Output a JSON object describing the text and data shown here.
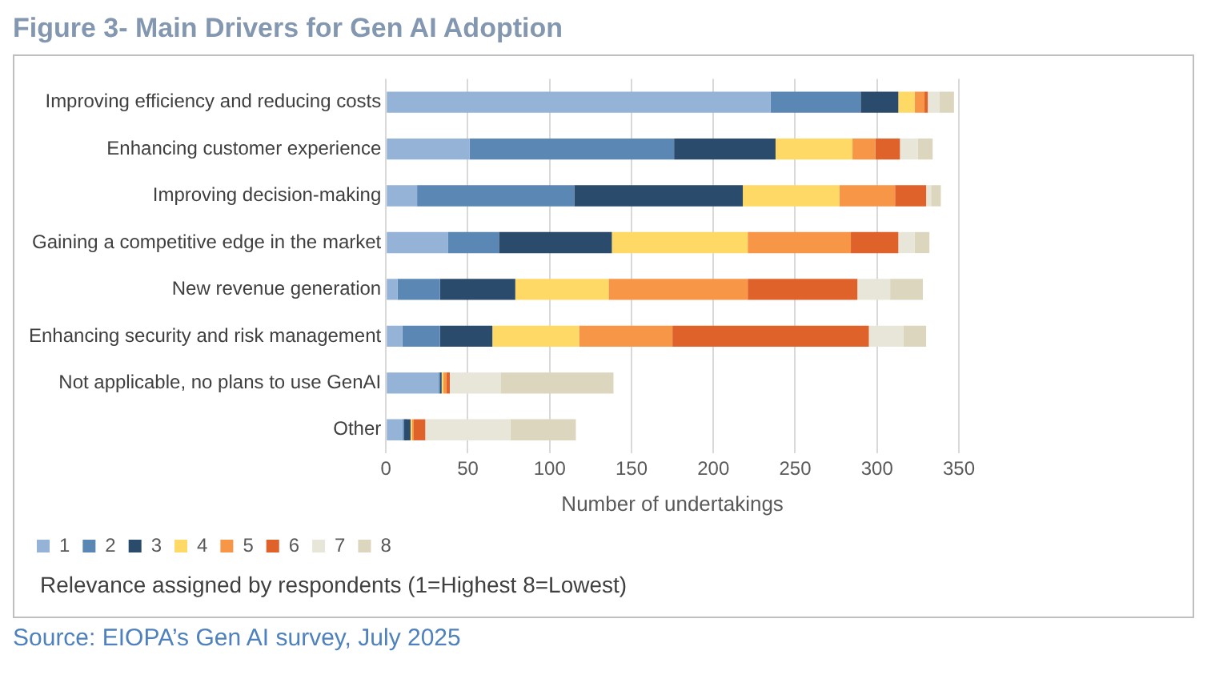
{
  "chart_data": {
    "type": "bar",
    "orientation": "horizontal",
    "stacked": true,
    "title": "Figure 3- Main Drivers for Gen AI Adoption",
    "xlabel": "Number of undertakings",
    "legend_title": "Relevance assigned by respondents (1=Highest 8=Lowest)",
    "annotations": [
      "Source: EIOPA’s Gen AI survey, July 2025"
    ],
    "categories": [
      "Improving efficiency and reducing costs",
      "Enhancing customer experience",
      "Improving decision-making",
      "Gaining a competitive edge in the market",
      "New revenue generation",
      "Enhancing security and risk management",
      "Not applicable, no plans to use GenAI",
      "Other"
    ],
    "series": [
      {
        "name": "1",
        "color": "#95b3d7",
        "values": [
          235,
          51,
          19,
          38,
          7,
          10,
          32,
          10
        ]
      },
      {
        "name": "2",
        "color": "#5b87b5",
        "values": [
          55,
          125,
          96,
          31,
          26,
          23,
          1,
          1
        ]
      },
      {
        "name": "3",
        "color": "#2a4b6b",
        "values": [
          23,
          62,
          103,
          69,
          46,
          32,
          1,
          4
        ]
      },
      {
        "name": "4",
        "color": "#ffd966",
        "values": [
          10,
          47,
          59,
          83,
          57,
          53,
          1,
          1
        ]
      },
      {
        "name": "5",
        "color": "#f79646",
        "values": [
          6,
          14,
          34,
          63,
          85,
          57,
          2,
          1
        ]
      },
      {
        "name": "6",
        "color": "#e0622b",
        "values": [
          2,
          15,
          19,
          29,
          67,
          120,
          2,
          7
        ]
      },
      {
        "name": "7",
        "color": "#e8e6d8",
        "values": [
          7,
          11,
          3,
          10,
          20,
          21,
          31,
          52
        ]
      },
      {
        "name": "8",
        "color": "#dcd6bf",
        "values": [
          9,
          9,
          6,
          9,
          20,
          14,
          69,
          40
        ]
      }
    ],
    "xlim": [
      0,
      350
    ],
    "xticks": [
      0,
      50,
      100,
      150,
      200,
      250,
      300,
      350
    ],
    "grid": "x",
    "legend": "bottom left"
  }
}
